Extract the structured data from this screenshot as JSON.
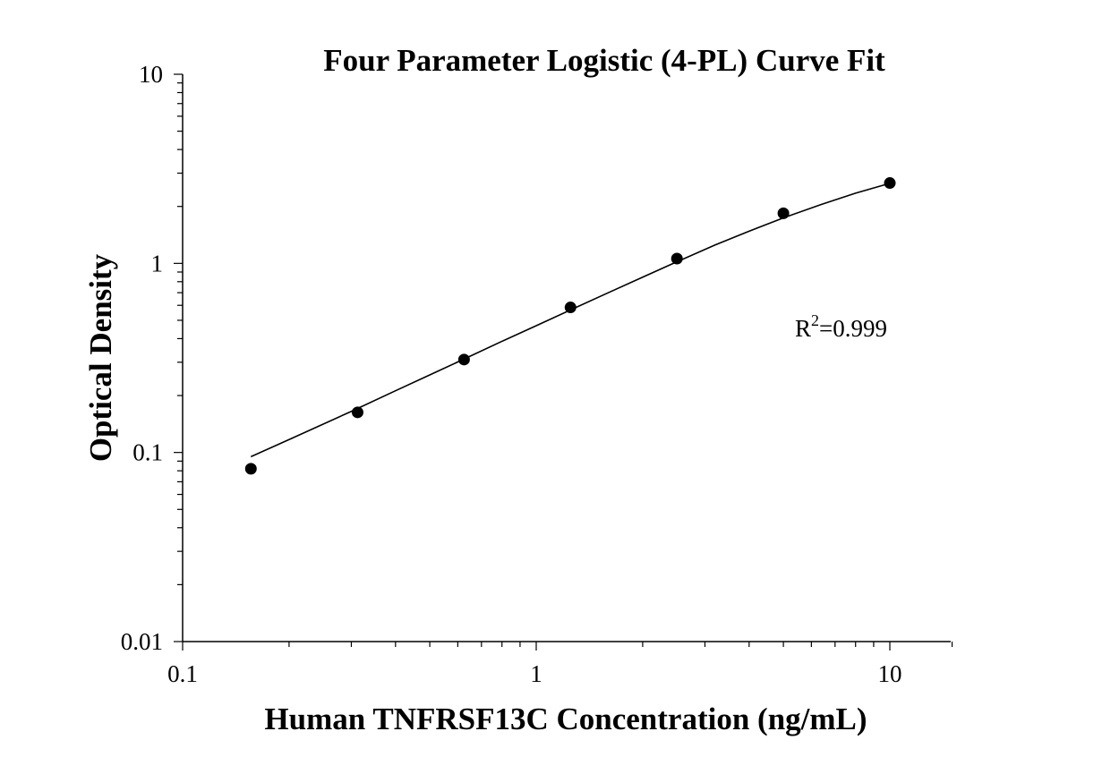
{
  "chart_data": {
    "type": "scatter",
    "title": "Four Parameter Logistic (4-PL) Curve Fit",
    "xlabel": "Human TNFRSF13C Concentration (ng/mL)",
    "ylabel": "Optical Density",
    "x_scale": "log",
    "y_scale": "log",
    "xlim": [
      0.1,
      15
    ],
    "ylim": [
      0.01,
      10
    ],
    "x_ticks": [
      {
        "value": 0.1,
        "label": "0.1"
      },
      {
        "value": 1,
        "label": "1"
      },
      {
        "value": 10,
        "label": "10"
      }
    ],
    "y_ticks": [
      {
        "value": 0.01,
        "label": "0.01"
      },
      {
        "value": 0.1,
        "label": "0.1"
      },
      {
        "value": 1,
        "label": "1"
      },
      {
        "value": 10,
        "label": "10"
      }
    ],
    "grid": false,
    "legend": "none",
    "annotation": {
      "base": "R",
      "superscript": "2",
      "value": "=0.999"
    },
    "series": [
      {
        "kind": "points",
        "x": [
          0.156,
          0.3125,
          0.625,
          1.25,
          2.5,
          5,
          10
        ],
        "y": [
          0.082,
          0.163,
          0.31,
          0.585,
          1.06,
          1.84,
          2.66
        ]
      },
      {
        "kind": "fit-curve",
        "x": [
          0.156,
          0.2,
          0.3,
          0.4,
          0.5,
          0.625,
          0.8,
          1.0,
          1.25,
          1.6,
          2.0,
          2.5,
          3.2,
          4.0,
          5.0,
          6.4,
          8.0,
          10
        ],
        "y": [
          0.095,
          0.117,
          0.165,
          0.212,
          0.257,
          0.312,
          0.387,
          0.468,
          0.567,
          0.7,
          0.845,
          1.02,
          1.25,
          1.48,
          1.74,
          2.05,
          2.35,
          2.65
        ]
      }
    ]
  }
}
